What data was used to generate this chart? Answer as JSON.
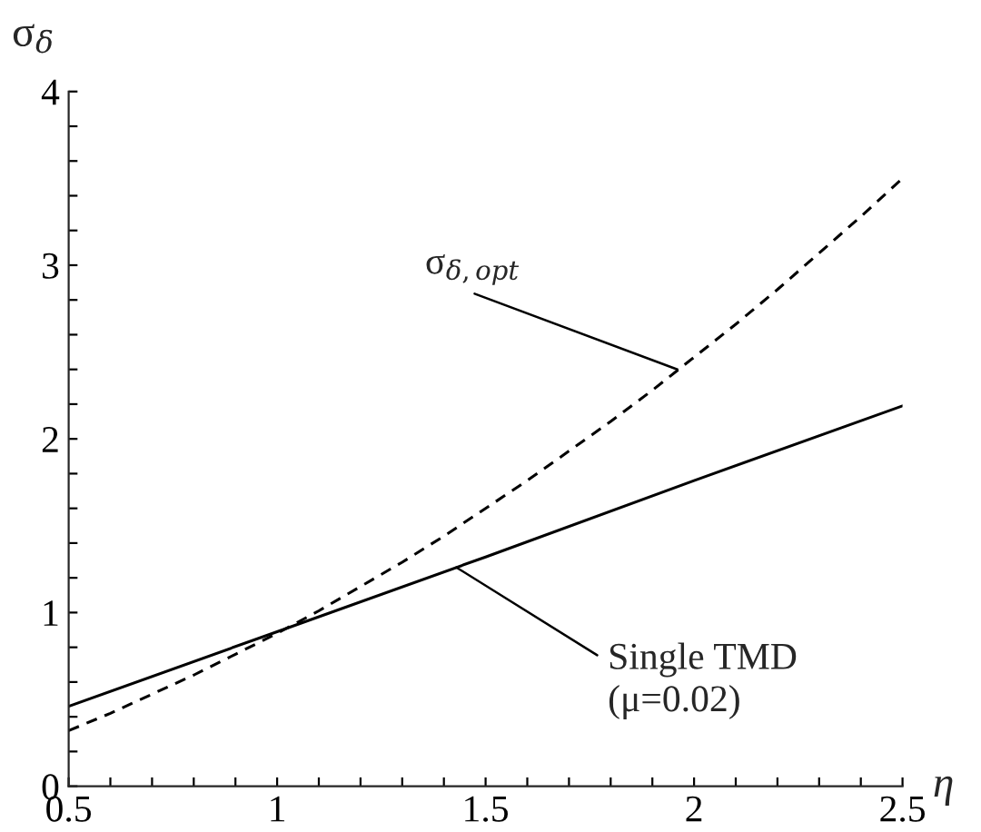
{
  "chart_data": {
    "type": "line",
    "xlabel": "η",
    "ylabel": "σ$_{δ}$",
    "xlim": [
      0.5,
      2.5
    ],
    "ylim": [
      0,
      4
    ],
    "xticks": [
      0.5,
      {
        "value": 0.6,
        "label": null
      },
      {
        "value": 0.7,
        "label": null
      },
      {
        "value": 0.8,
        "label": null
      },
      {
        "value": 0.9,
        "label": null
      },
      1,
      {
        "value": 1.1,
        "label": null
      },
      {
        "value": 1.2,
        "label": null
      },
      {
        "value": 1.3,
        "label": null
      },
      {
        "value": 1.4,
        "label": null
      },
      1.5,
      {
        "value": 1.6,
        "label": null
      },
      {
        "value": 1.7,
        "label": null
      },
      {
        "value": 1.8,
        "label": null
      },
      {
        "value": 1.9,
        "label": null
      },
      2,
      {
        "value": 2.1,
        "label": null
      },
      {
        "value": 2.2,
        "label": null
      },
      {
        "value": 2.3,
        "label": null
      },
      {
        "value": 2.4,
        "label": null
      },
      2.5
    ],
    "yticks": [
      0,
      {
        "value": 0.2,
        "label": null
      },
      {
        "value": 0.4,
        "label": null
      },
      {
        "value": 0.6,
        "label": null
      },
      {
        "value": 0.8,
        "label": null
      },
      1,
      {
        "value": 1.2,
        "label": null
      },
      {
        "value": 1.4,
        "label": null
      },
      {
        "value": 1.6,
        "label": null
      },
      {
        "value": 1.8,
        "label": null
      },
      2,
      {
        "value": 2.2,
        "label": null
      },
      {
        "value": 2.4,
        "label": null
      },
      {
        "value": 2.6,
        "label": null
      },
      {
        "value": 2.8,
        "label": null
      },
      3,
      {
        "value": 3.2,
        "label": null
      },
      {
        "value": 3.4,
        "label": null
      },
      {
        "value": 3.6,
        "label": null
      },
      {
        "value": 3.8,
        "label": null
      },
      4
    ],
    "grid": false,
    "legend": false,
    "series": [
      {
        "color": "#000000",
        "line_style": "solid",
        "x": [
          0.5,
          1,
          1.5,
          2,
          2.5
        ],
        "values": [
          0.46,
          0.89,
          1.32,
          1.76,
          2.19
        ]
      },
      {
        "color": "#000000",
        "line_style": "dashed",
        "x": [
          0.5,
          0.6,
          0.7,
          0.8,
          0.9,
          1.0,
          1.1,
          1.2,
          1.3,
          1.4,
          1.5,
          1.6,
          1.7,
          1.8,
          1.9,
          2.0,
          2.1,
          2.2,
          2.3,
          2.4,
          2.5
        ],
        "values": [
          0.32,
          0.42,
          0.53,
          0.64,
          0.76,
          0.88,
          1.01,
          1.15,
          1.29,
          1.44,
          1.6,
          1.76,
          1.93,
          2.1,
          2.28,
          2.47,
          2.66,
          2.86,
          3.07,
          3.28,
          3.5
        ]
      }
    ],
    "annotations": [
      {
        "text": "σ$_{δ,opt}$",
        "x": 1.96,
        "y": 2.4
      },
      {
        "text": "Single TMD\n(μ=0.02)",
        "x": 1.43,
        "y": 1.26
      }
    ]
  }
}
